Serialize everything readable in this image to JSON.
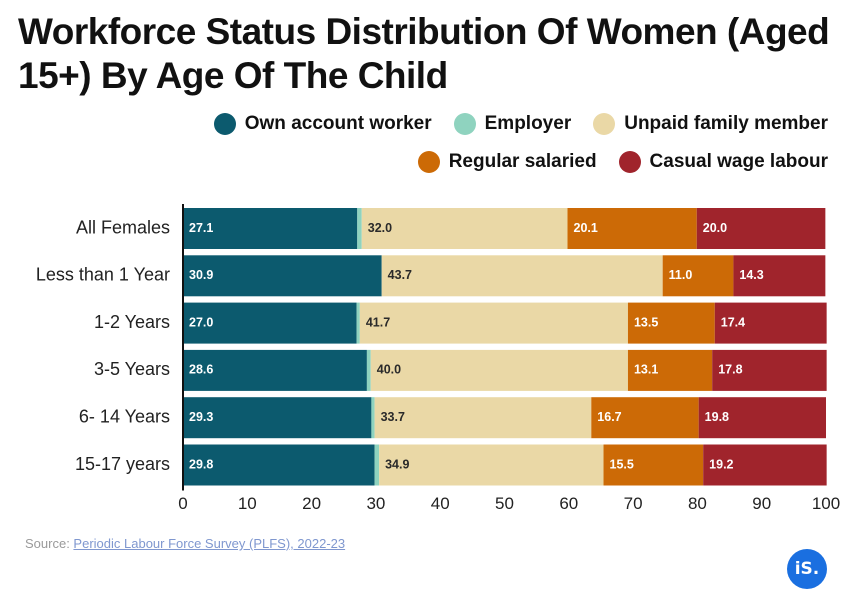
{
  "title": "Workforce Status Distribution Of Women (Aged 15+) By Age Of The Child",
  "legend": [
    {
      "name": "Own account worker",
      "color": "#0c5a6e"
    },
    {
      "name": "Employer",
      "color": "#8fd3bf"
    },
    {
      "name": "Unpaid family member",
      "color": "#ead8a6"
    },
    {
      "name": "Regular salaried",
      "color": "#cc6a06"
    },
    {
      "name": "Casual wage labour",
      "color": "#a0242c"
    }
  ],
  "source": {
    "prefix": "Source: ",
    "link_text": "Periodic Labour Force Survey (PLFS), 2022-23"
  },
  "logo": "iS.",
  "chart_data": {
    "type": "bar",
    "orientation": "horizontal",
    "stacked": true,
    "title": "Workforce Status Distribution Of Women (Aged 15+) By Age Of The Child",
    "xlabel": "",
    "ylabel": "",
    "xlim": [
      0,
      100
    ],
    "x_ticks": [
      0,
      10,
      20,
      30,
      40,
      50,
      60,
      70,
      80,
      90,
      100
    ],
    "grid": false,
    "legend_position": "top-right",
    "categories": [
      "All Females",
      "Less than 1 Year",
      "1-2 Years",
      "3-5 Years",
      "6- 14 Years",
      "15-17 years"
    ],
    "series": [
      {
        "name": "Own account worker",
        "color": "#0c5a6e",
        "label_color": "#ffffff",
        "values": [
          27.1,
          30.9,
          27.0,
          28.6,
          29.3,
          29.8
        ]
      },
      {
        "name": "Employer",
        "color": "#8fd3bf",
        "label_color": "#0c5a6e",
        "values": [
          0.7,
          0.0,
          0.5,
          0.6,
          0.5,
          0.7
        ]
      },
      {
        "name": "Unpaid family member",
        "color": "#ead8a6",
        "label_color": "#2a2a2a",
        "values": [
          32.0,
          43.7,
          41.7,
          40.0,
          33.7,
          34.9
        ]
      },
      {
        "name": "Regular salaried",
        "color": "#cc6a06",
        "label_color": "#ffffff",
        "values": [
          20.1,
          11.0,
          13.5,
          13.1,
          16.7,
          15.5
        ]
      },
      {
        "name": "Casual wage labour",
        "color": "#a0242c",
        "label_color": "#ffffff",
        "values": [
          20.0,
          14.3,
          17.4,
          17.8,
          19.8,
          19.2
        ]
      }
    ]
  }
}
